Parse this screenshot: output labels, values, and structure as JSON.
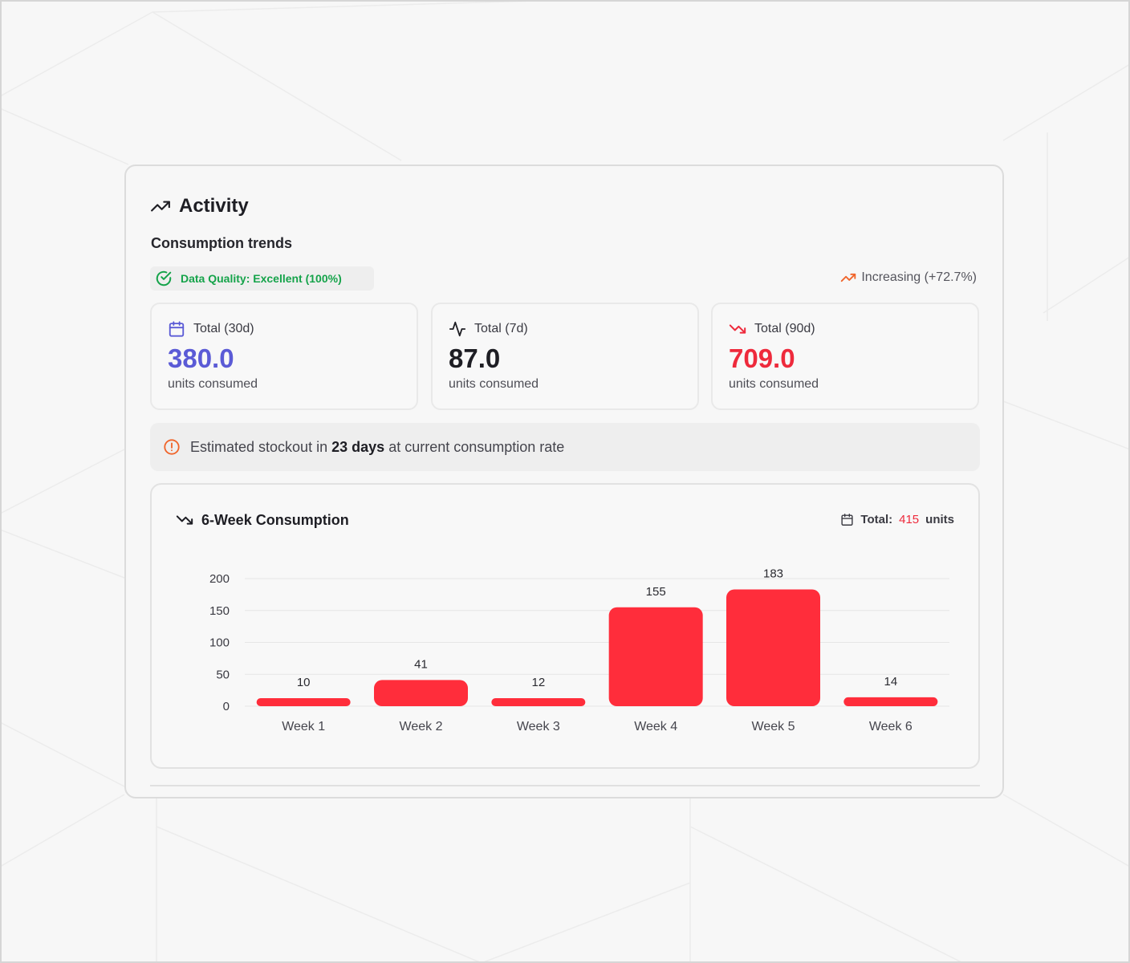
{
  "card": {
    "title": "Activity",
    "subtitle": "Consumption trends",
    "quality_label": "Data Quality: Excellent (100%)",
    "trend_label": "Increasing (+72.7%)"
  },
  "stats": [
    {
      "label": "Total (30d)",
      "value": "380.0",
      "unit": "units consumed",
      "icon": "calendar-icon",
      "color": "#5b5bd6"
    },
    {
      "label": "Total (7d)",
      "value": "87.0",
      "unit": "units consumed",
      "icon": "activity-icon",
      "color": "#1e1e24"
    },
    {
      "label": "Total (90d)",
      "value": "709.0",
      "unit": "units consumed",
      "icon": "trending-down-icon",
      "color": "#ee2a3c"
    }
  ],
  "alert": {
    "prefix": "Estimated stockout in",
    "days": "23 days",
    "suffix": "at current consumption rate"
  },
  "chart_header": {
    "title": "6-Week Consumption",
    "total_label": "Total:",
    "total_value": "415",
    "total_unit": "units"
  },
  "colors": {
    "accent_purple": "#5b5bd6",
    "danger_red": "#ee2a3c",
    "bar_red": "#ff2d3b",
    "success_green": "#15a34a",
    "warning_orange": "#f0642a"
  },
  "chart_data": {
    "type": "bar",
    "categories": [
      "Week 1",
      "Week 2",
      "Week 3",
      "Week 4",
      "Week 5",
      "Week 6"
    ],
    "values": [
      10,
      41,
      12,
      155,
      183,
      14
    ],
    "ylim": [
      0,
      200
    ],
    "yticks": [
      0,
      50,
      100,
      150,
      200
    ],
    "grid": true,
    "data_labels": true
  }
}
